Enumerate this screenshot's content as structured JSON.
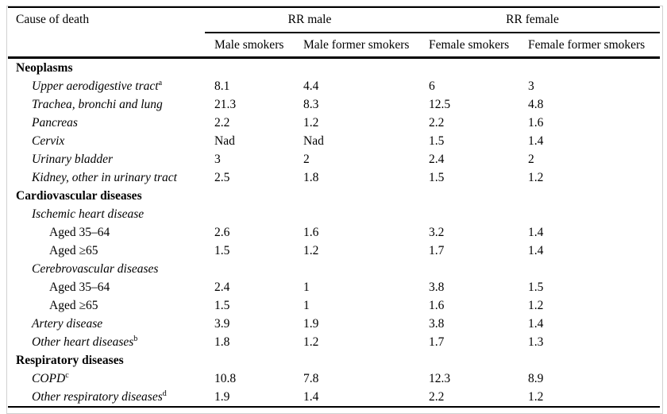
{
  "page": {
    "background_color": "#ffffff",
    "frame_color": "#d0d0d0",
    "rule_color": "#000000",
    "text_color": "#000000"
  },
  "table": {
    "corner_header": "Cause of death",
    "group_headers": [
      {
        "label": "RR male"
      },
      {
        "label": "RR female"
      }
    ],
    "column_headers": [
      "Male smokers",
      "Male former smokers",
      "Female smokers",
      "Female former smokers"
    ],
    "rows": [
      {
        "level": "section",
        "label": "Neoplasms",
        "values": [
          "",
          "",
          "",
          ""
        ]
      },
      {
        "level": "item",
        "label": "Upper aerodigestive tract",
        "sup": "a",
        "values": [
          "8.1",
          "4.4",
          "6",
          "3"
        ]
      },
      {
        "level": "item",
        "label": "Trachea, bronchi and lung",
        "values": [
          "21.3",
          "8.3",
          "12.5",
          "4.8"
        ]
      },
      {
        "level": "item",
        "label": "Pancreas",
        "values": [
          "2.2",
          "1.2",
          "2.2",
          "1.6"
        ]
      },
      {
        "level": "item",
        "label": "Cervix",
        "values": [
          "Nad",
          "Nad",
          "1.5",
          "1.4"
        ]
      },
      {
        "level": "item",
        "label": "Urinary bladder",
        "values": [
          "3",
          "2",
          "2.4",
          "2"
        ]
      },
      {
        "level": "item",
        "label": "Kidney, other in urinary tract",
        "values": [
          "2.5",
          "1.8",
          "1.5",
          "1.2"
        ]
      },
      {
        "level": "section",
        "label": "Cardiovascular diseases",
        "values": [
          "",
          "",
          "",
          ""
        ]
      },
      {
        "level": "item",
        "label": "Ischemic heart disease",
        "values": [
          "",
          "",
          "",
          ""
        ]
      },
      {
        "level": "subitem",
        "label": "Aged 35–64",
        "values": [
          "2.6",
          "1.6",
          "3.2",
          "1.4"
        ]
      },
      {
        "level": "subitem",
        "label": "Aged ≥65",
        "values": [
          "1.5",
          "1.2",
          "1.7",
          "1.4"
        ]
      },
      {
        "level": "item",
        "label": "Cerebrovascular diseases",
        "values": [
          "",
          "",
          "",
          ""
        ]
      },
      {
        "level": "subitem",
        "label": "Aged 35–64",
        "values": [
          "2.4",
          "1",
          "3.8",
          "1.5"
        ]
      },
      {
        "level": "subitem",
        "label": "Aged ≥65",
        "values": [
          "1.5",
          "1",
          "1.6",
          "1.2"
        ]
      },
      {
        "level": "item",
        "label": "Artery disease",
        "values": [
          "3.9",
          "1.9",
          "3.8",
          "1.4"
        ]
      },
      {
        "level": "item",
        "label": "Other heart diseases",
        "sup": "b",
        "values": [
          "1.8",
          "1.2",
          "1.7",
          "1.3"
        ]
      },
      {
        "level": "section",
        "label": "Respiratory diseases",
        "values": [
          "",
          "",
          "",
          ""
        ]
      },
      {
        "level": "item",
        "label": "COPD",
        "sup": "c",
        "values": [
          "10.8",
          "7.8",
          "12.3",
          "8.9"
        ]
      },
      {
        "level": "item",
        "label": "Other respiratory diseases",
        "sup": "d",
        "values": [
          "1.9",
          "1.4",
          "2.2",
          "1.2"
        ]
      }
    ]
  }
}
